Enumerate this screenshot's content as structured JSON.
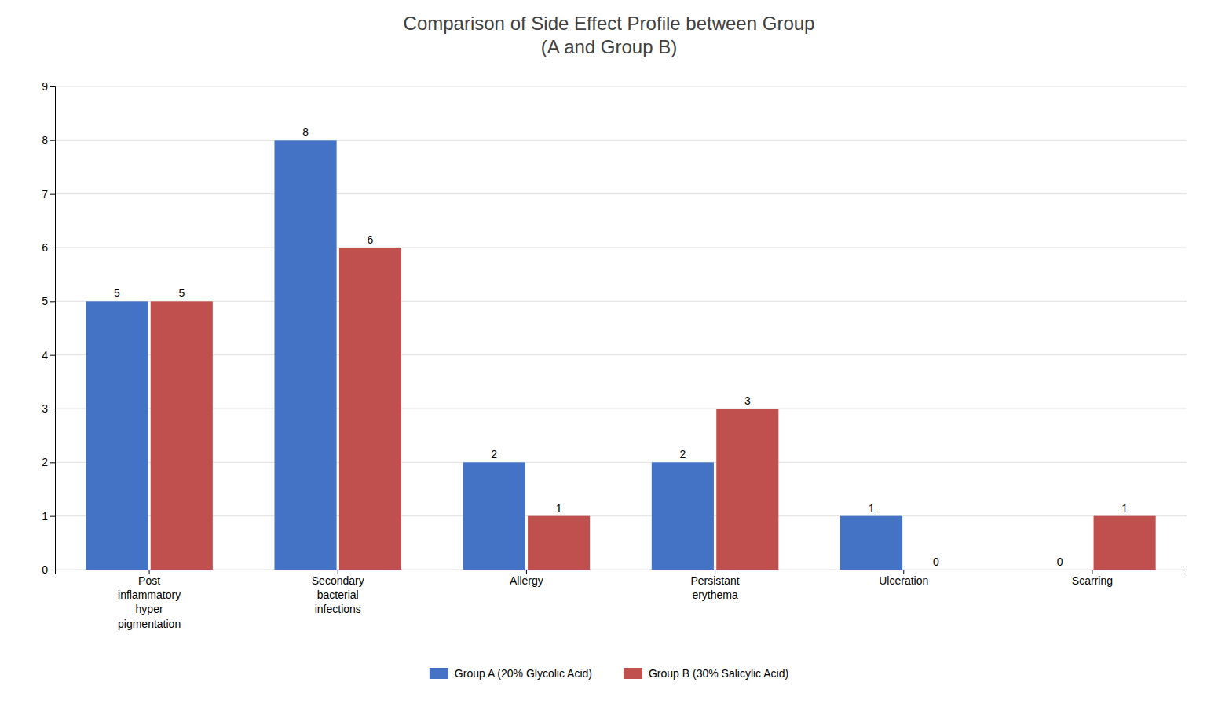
{
  "chart_data": {
    "type": "bar",
    "title": "Comparison of Side Effect Profile between Group\n(A and Group B)",
    "categories": [
      "Post\ninflammatory\nhyper\npigmentation",
      "Secondary\nbacterial\ninfections",
      "Allergy",
      "Persistant\nerythema",
      "Ulceration",
      "Scarring"
    ],
    "series": [
      {
        "name": "Group A (20% Glycolic Acid)",
        "color": "#4472C4",
        "values": [
          5,
          8,
          2,
          2,
          1,
          0
        ]
      },
      {
        "name": "Group B (30% Salicylic Acid)",
        "color": "#C0504D",
        "values": [
          5,
          6,
          1,
          3,
          0,
          1
        ]
      }
    ],
    "ylim": [
      0,
      9
    ],
    "yticks": [
      0,
      1,
      2,
      3,
      4,
      5,
      6,
      7,
      8,
      9
    ],
    "grid": true,
    "legend": "bottom",
    "data_labels": true
  }
}
